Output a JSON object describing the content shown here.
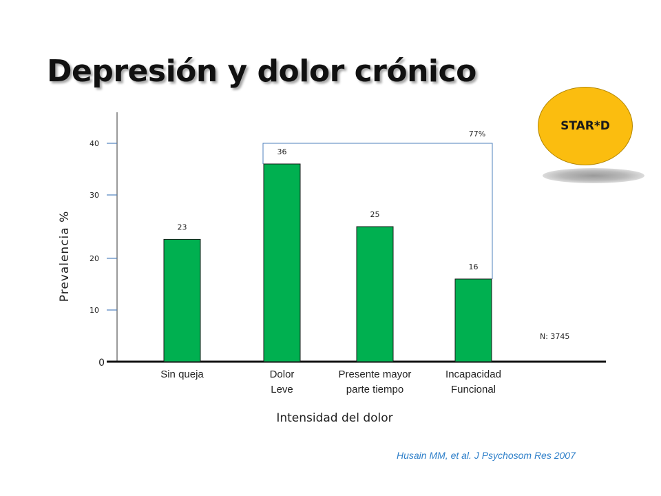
{
  "slide": {
    "title": "Depresión y dolor crónico",
    "badge": "STAR*D",
    "citation": "Husain MM, et al. J Psychosom Res 2007",
    "n_note": "N: 3745",
    "bracket_label": "77%"
  },
  "colors": {
    "bar": "#00b050",
    "bracket": "#4f81bd",
    "badge": "#fbbd0f",
    "citation": "#2e7fc9"
  },
  "chart_data": {
    "type": "bar",
    "categories": [
      [
        "Sin queja"
      ],
      [
        "Dolor",
        "Leve"
      ],
      [
        "Presente mayor",
        "parte tiempo"
      ],
      [
        "Incapacidad",
        "Funcional"
      ]
    ],
    "values": [
      23,
      36,
      25,
      16
    ],
    "data_labels": [
      "23",
      "36",
      "25",
      "16"
    ],
    "xlabel": "Intensidad del dolor",
    "ylabel": "Prevalencia %",
    "y_ticks": [
      "0",
      "10",
      "20",
      "30",
      "40"
    ],
    "ylim": [
      0,
      40
    ],
    "grid": false,
    "bracket": {
      "from_category": 1,
      "to_category": 3,
      "label": "77%"
    }
  }
}
